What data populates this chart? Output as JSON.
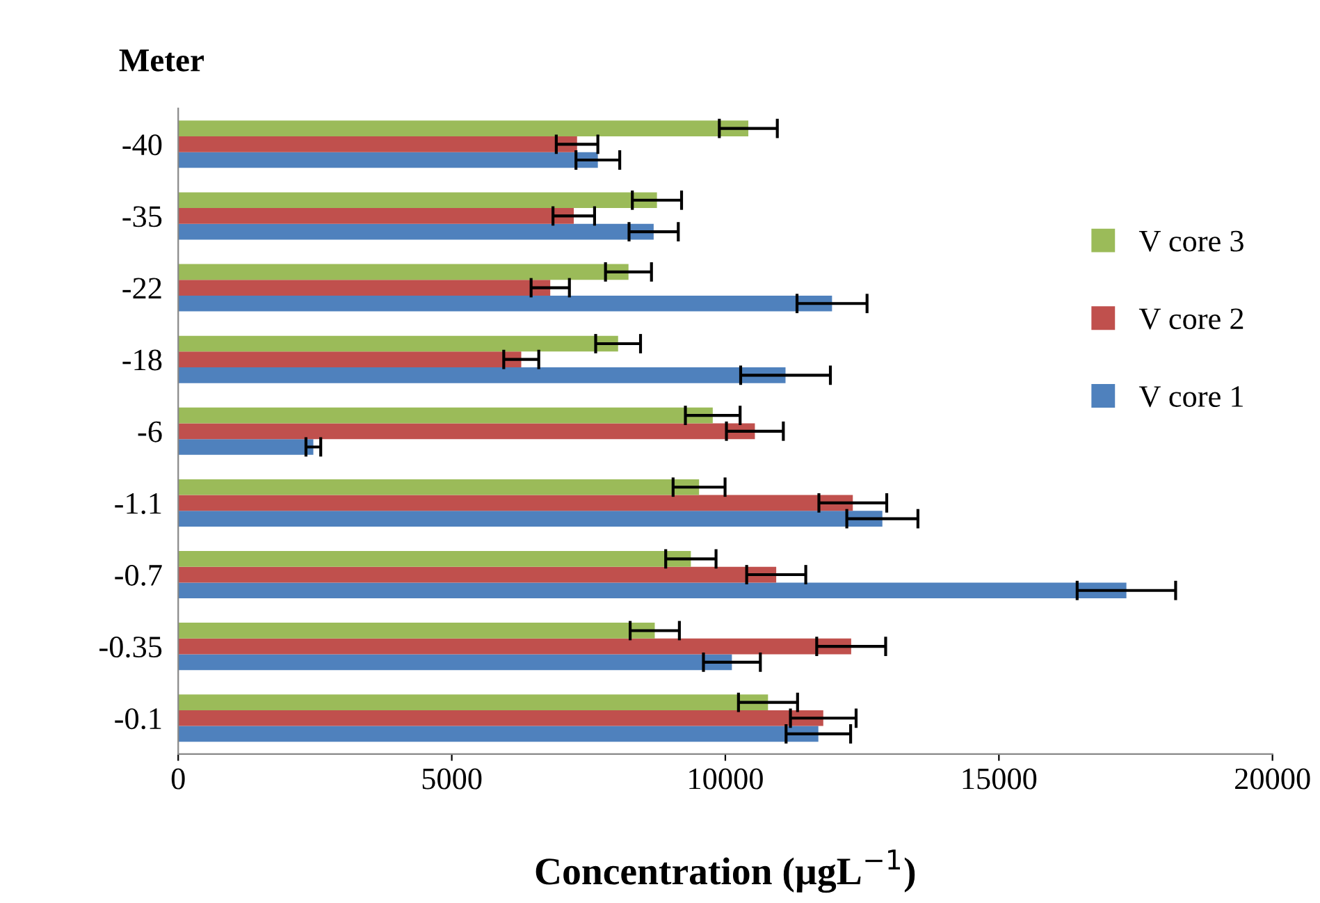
{
  "chart_data": {
    "type": "bar",
    "orientation": "horizontal",
    "ylabel": "Meter",
    "xlabel": "Concentration (µgL$^{−1}$)",
    "categories": [
      "-40",
      "-35",
      "-22",
      "-18",
      "-6",
      "-1.1",
      "-0.7",
      "-0.35",
      "-0.1"
    ],
    "series": [
      {
        "name": "V core 1",
        "color": "#4f81bd",
        "values": [
          7670,
          8690,
          11950,
          11100,
          2470,
          12870,
          17330,
          10120,
          11700
        ],
        "errors": [
          400,
          450,
          640,
          820,
          135,
          650,
          900,
          520,
          590
        ]
      },
      {
        "name": "V core 2",
        "color": "#c0504d",
        "values": [
          7290,
          7230,
          6800,
          6270,
          10540,
          12330,
          10930,
          12300,
          11790
        ],
        "errors": [
          380,
          380,
          350,
          320,
          520,
          620,
          540,
          630,
          600
        ]
      },
      {
        "name": "V core 3",
        "color": "#9bbb59",
        "values": [
          10420,
          8750,
          8230,
          8040,
          9770,
          9520,
          9370,
          8710,
          10780
        ],
        "errors": [
          530,
          450,
          420,
          410,
          500,
          475,
          460,
          450,
          540
        ]
      }
    ],
    "xlim": [
      0,
      20000
    ],
    "xticks": [
      0,
      5000,
      10000,
      15000,
      20000
    ],
    "legend": "right",
    "grid": false
  }
}
